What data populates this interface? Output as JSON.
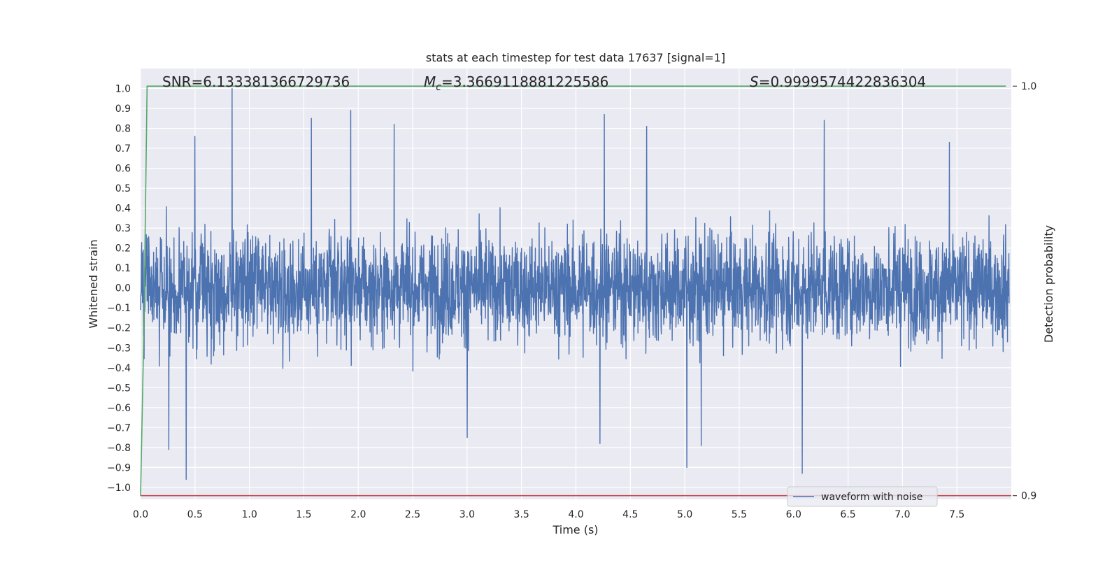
{
  "chart_data": {
    "type": "line",
    "title": "stats at each timestep for test data 17637 [signal=1]",
    "xlabel": "Time (s)",
    "ylabel": "Whitened strain",
    "y2label": "Detection probability",
    "xlim": [
      0.0,
      8.0
    ],
    "ylim": [
      -1.06,
      1.1
    ],
    "y2lim": [
      0.8991,
      1.0043
    ],
    "x_ticks": [
      "0.0",
      "0.5",
      "1.0",
      "1.5",
      "2.0",
      "2.5",
      "3.0",
      "3.5",
      "4.0",
      "4.5",
      "5.0",
      "5.5",
      "6.0",
      "6.5",
      "7.0",
      "7.5"
    ],
    "y_ticks": [
      "1.0",
      "0.9",
      "0.8",
      "0.7",
      "0.6",
      "0.5",
      "0.4",
      "0.3",
      "0.2",
      "0.1",
      "0.0",
      "−0.1",
      "−0.2",
      "−0.3",
      "−0.4",
      "−0.5",
      "−0.6",
      "−0.7",
      "−0.8",
      "−0.9",
      "−1.0"
    ],
    "y2_ticks": [
      "1.0",
      "0.9"
    ],
    "grid": true,
    "legend_position": "lower-right",
    "annotations": {
      "snr": "SNR=6.133381366729736",
      "mc_symbol": "M",
      "mc_sub": "c",
      "mc_value": "=3.3669118881225586",
      "s_symbol": "S",
      "s_value": "=0.9999574422836304"
    },
    "series": [
      {
        "name": "waveform with noise",
        "axis": "left",
        "color": "#4c72b0",
        "description_kind": "noise-dominated",
        "envelope_typical": 0.45,
        "peaks": [
          {
            "x": 0.42,
            "y": -0.96
          },
          {
            "x": 0.26,
            "y": -0.81
          },
          {
            "x": 0.5,
            "y": 0.76
          },
          {
            "x": 0.84,
            "y": 1.0
          },
          {
            "x": 1.57,
            "y": 0.85
          },
          {
            "x": 1.93,
            "y": 0.89
          },
          {
            "x": 2.33,
            "y": 0.82
          },
          {
            "x": 3.0,
            "y": -0.75
          },
          {
            "x": 4.22,
            "y": -0.78
          },
          {
            "x": 4.26,
            "y": 0.87
          },
          {
            "x": 4.65,
            "y": 0.81
          },
          {
            "x": 5.02,
            "y": -0.9
          },
          {
            "x": 5.15,
            "y": -0.79
          },
          {
            "x": 6.08,
            "y": -0.93
          },
          {
            "x": 6.28,
            "y": 0.84
          },
          {
            "x": 7.43,
            "y": 0.73
          }
        ]
      },
      {
        "name": "",
        "axis": "right",
        "color": "#55a868",
        "points": [
          [
            0.0,
            0.9
          ],
          [
            0.03,
            0.94
          ],
          [
            0.06,
            1.0
          ],
          [
            0.1,
            1.0
          ],
          [
            7.95,
            1.0
          ]
        ]
      },
      {
        "name": "",
        "axis": "right",
        "color": "#c44e52",
        "points": [
          [
            0.0,
            0.9
          ],
          [
            8.0,
            0.9
          ]
        ]
      }
    ]
  }
}
